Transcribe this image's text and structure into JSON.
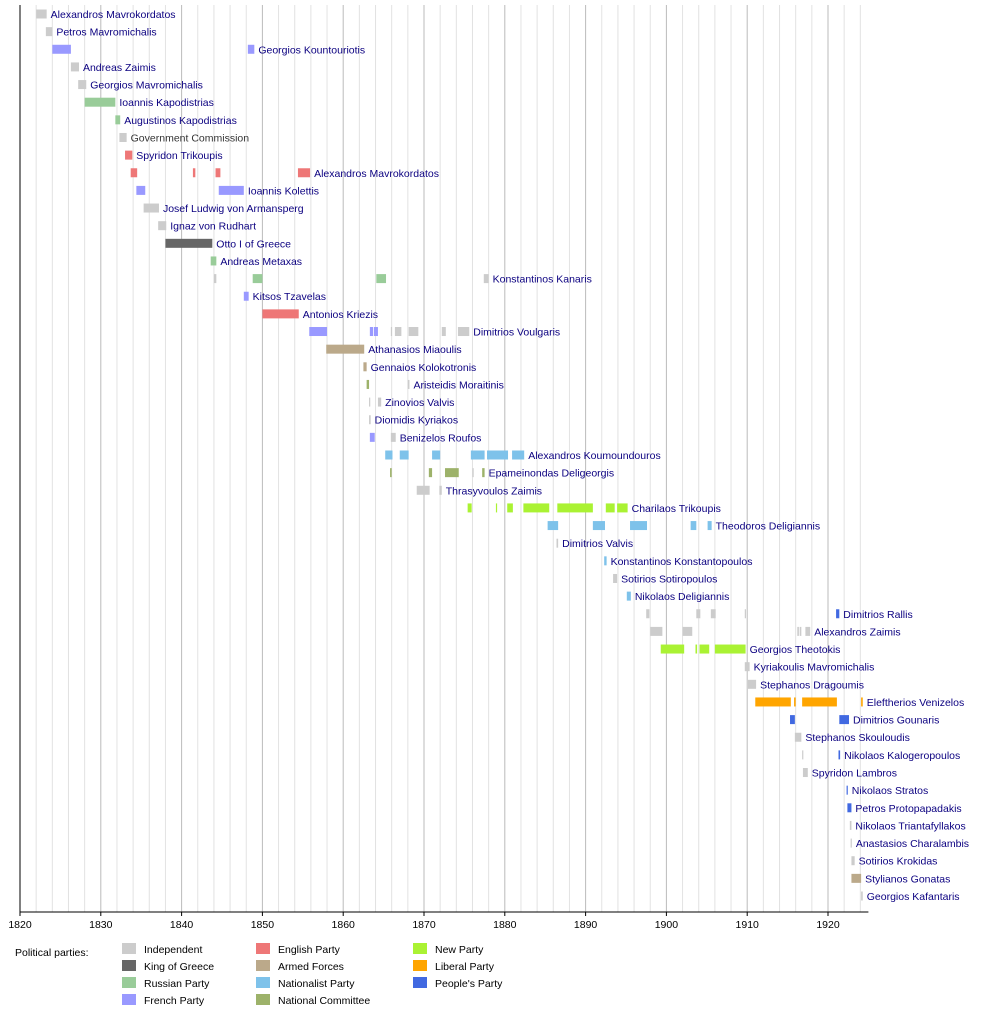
{
  "chart_data": {
    "type": "timeline",
    "xlim": [
      1820,
      1925
    ],
    "x_ticks": [
      "1820",
      "1830",
      "1840",
      "1850",
      "1860",
      "1870",
      "1880",
      "1890",
      "1900",
      "1910",
      "1920"
    ],
    "grid": true,
    "legend_title": "Political parties:",
    "legend_placement": "bottom-left",
    "parties": [
      {
        "key": "ind",
        "name": "Independent",
        "color": "#cccccc"
      },
      {
        "key": "king",
        "name": "King of Greece",
        "color": "#666666"
      },
      {
        "key": "rus",
        "name": "Russian Party",
        "color": "#99cc99"
      },
      {
        "key": "fr",
        "name": "French Party",
        "color": "#9999ff"
      },
      {
        "key": "eng",
        "name": "English Party",
        "color": "#ee7777"
      },
      {
        "key": "arm",
        "name": "Armed Forces",
        "color": "#bba98a"
      },
      {
        "key": "nat",
        "name": "Nationalist Party",
        "color": "#7ec2ea"
      },
      {
        "key": "nc",
        "name": "National Committee",
        "color": "#9db26a"
      },
      {
        "key": "new",
        "name": "New Party",
        "color": "#aaf233"
      },
      {
        "key": "lib",
        "name": "Liberal Party",
        "color": "#ffa500"
      },
      {
        "key": "peo",
        "name": "People's Party",
        "color": "#4169e1"
      }
    ],
    "rows": [
      {
        "name": "Alexandros Mavrokordatos",
        "segments": [
          [
            1822.0,
            1823.3,
            "ind"
          ]
        ]
      },
      {
        "name": "Petros Mavromichalis",
        "segments": [
          [
            1823.2,
            1824.0,
            "ind"
          ]
        ]
      },
      {
        "name": "Georgios Kountouriotis",
        "segments": [
          [
            1824.0,
            1826.3,
            "fr"
          ],
          [
            1848.2,
            1849.0,
            "fr"
          ]
        ]
      },
      {
        "name": "Andreas Zaimis",
        "segments": [
          [
            1826.3,
            1827.3,
            "ind"
          ]
        ]
      },
      {
        "name": "Georgios Mavromichalis",
        "segments": [
          [
            1827.2,
            1828.2,
            "ind"
          ]
        ]
      },
      {
        "name": "Ioannis Kapodistrias",
        "segments": [
          [
            1828.0,
            1831.8,
            "rus"
          ]
        ]
      },
      {
        "name": "Augustinos Kapodistrias",
        "segments": [
          [
            1831.8,
            1832.4,
            "rus"
          ]
        ]
      },
      {
        "name": "Government Commission",
        "plain": true,
        "segments": [
          [
            1832.3,
            1833.2,
            "ind"
          ]
        ]
      },
      {
        "name": "Spyridon Trikoupis",
        "segments": [
          [
            1833.0,
            1833.9,
            "eng"
          ]
        ]
      },
      {
        "name": "Alexandros Mavrokordatos",
        "segments": [
          [
            1833.7,
            1834.5,
            "eng"
          ],
          [
            1841.4,
            1841.7,
            "eng"
          ],
          [
            1844.2,
            1844.8,
            "eng"
          ],
          [
            1854.4,
            1855.9,
            "eng"
          ]
        ]
      },
      {
        "name": "Ioannis Kolettis",
        "segments": [
          [
            1834.4,
            1835.5,
            "fr"
          ],
          [
            1844.6,
            1847.7,
            "fr"
          ]
        ]
      },
      {
        "name": "Josef Ludwig von Armansperg",
        "segments": [
          [
            1835.3,
            1837.2,
            "ind"
          ]
        ]
      },
      {
        "name": "Ignaz von Rudhart",
        "segments": [
          [
            1837.1,
            1838.1,
            "ind"
          ]
        ]
      },
      {
        "name": "Otto I of Greece",
        "segments": [
          [
            1838.0,
            1843.8,
            "king"
          ]
        ]
      },
      {
        "name": "Andreas Metaxas",
        "segments": [
          [
            1843.6,
            1844.3,
            "rus"
          ]
        ]
      },
      {
        "name": "Konstantinos Kanaris",
        "segments": [
          [
            1844.0,
            1844.3,
            "ind"
          ],
          [
            1848.8,
            1850.0,
            "rus"
          ],
          [
            1864.1,
            1865.3,
            "rus"
          ],
          [
            1877.4,
            1878.0,
            "ind"
          ]
        ]
      },
      {
        "name": "Kitsos Tzavelas",
        "segments": [
          [
            1847.7,
            1848.3,
            "fr"
          ]
        ]
      },
      {
        "name": "Antonios Kriezis",
        "segments": [
          [
            1850.0,
            1854.5,
            "eng"
          ]
        ]
      },
      {
        "name": "Dimitrios Voulgaris",
        "segments": [
          [
            1855.8,
            1858.0,
            "fr"
          ],
          [
            1863.3,
            1863.7,
            "fr"
          ],
          [
            1863.8,
            1864.3,
            "fr"
          ],
          [
            1865.9,
            1866.0,
            "ind"
          ],
          [
            1866.4,
            1867.2,
            "ind"
          ],
          [
            1868.1,
            1869.3,
            "ind"
          ],
          [
            1872.2,
            1872.7,
            "ind"
          ],
          [
            1874.2,
            1875.6,
            "ind"
          ]
        ]
      },
      {
        "name": "Athanasios Miaoulis",
        "segments": [
          [
            1857.9,
            1862.6,
            "arm"
          ]
        ]
      },
      {
        "name": "Gennaios Kolokotronis",
        "segments": [
          [
            1862.5,
            1862.9,
            "arm"
          ]
        ]
      },
      {
        "name": "Aristeidis Moraitinis",
        "segments": [
          [
            1862.9,
            1863.2,
            "nc"
          ],
          [
            1868.0,
            1868.2,
            "ind"
          ]
        ]
      },
      {
        "name": "Zinovios Valvis",
        "segments": [
          [
            1863.2,
            1863.3,
            "ind"
          ],
          [
            1864.3,
            1864.7,
            "ind"
          ]
        ]
      },
      {
        "name": "Diomidis Kyriakos",
        "segments": [
          [
            1863.2,
            1863.4,
            "ind"
          ]
        ]
      },
      {
        "name": "Benizelos Roufos",
        "segments": [
          [
            1863.3,
            1863.9,
            "fr"
          ],
          [
            1865.9,
            1866.5,
            "ind"
          ]
        ]
      },
      {
        "name": "Alexandros Koumoundouros",
        "segments": [
          [
            1865.2,
            1866.1,
            "nat"
          ],
          [
            1867.0,
            1868.1,
            "nat"
          ],
          [
            1871.0,
            1872.0,
            "nat"
          ],
          [
            1875.8,
            1877.5,
            "nat"
          ],
          [
            1877.8,
            1880.4,
            "nat"
          ],
          [
            1880.9,
            1882.4,
            "nat"
          ]
        ]
      },
      {
        "name": "Epameinondas Deligeorgis",
        "segments": [
          [
            1865.8,
            1866.0,
            "nc"
          ],
          [
            1870.6,
            1871.0,
            "nc"
          ],
          [
            1872.6,
            1874.3,
            "nc"
          ],
          [
            1876.0,
            1876.1,
            "ind"
          ],
          [
            1877.2,
            1877.5,
            "nc"
          ]
        ]
      },
      {
        "name": "Thrasyvoulos Zaimis",
        "segments": [
          [
            1869.1,
            1870.7,
            "ind"
          ],
          [
            1871.9,
            1872.2,
            "ind"
          ]
        ]
      },
      {
        "name": "Charilaos Trikoupis",
        "segments": [
          [
            1875.4,
            1875.9,
            "new"
          ],
          [
            1878.9,
            1879.0,
            "new"
          ],
          [
            1880.3,
            1881.0,
            "new"
          ],
          [
            1882.3,
            1885.5,
            "new"
          ],
          [
            1886.5,
            1890.9,
            "new"
          ],
          [
            1892.5,
            1893.6,
            "new"
          ],
          [
            1893.9,
            1895.2,
            "new"
          ]
        ]
      },
      {
        "name": "Theodoros Deligiannis",
        "segments": [
          [
            1885.3,
            1886.6,
            "nat"
          ],
          [
            1890.9,
            1892.4,
            "nat"
          ],
          [
            1895.5,
            1897.6,
            "nat"
          ],
          [
            1903.0,
            1903.7,
            "nat"
          ],
          [
            1905.1,
            1905.6,
            "nat"
          ]
        ]
      },
      {
        "name": "Dimitrios Valvis",
        "segments": [
          [
            1886.4,
            1886.6,
            "ind"
          ]
        ]
      },
      {
        "name": "Konstantinos Konstantopoulos",
        "segments": [
          [
            1892.3,
            1892.6,
            "nat"
          ]
        ]
      },
      {
        "name": "Sotirios Sotiropoulos",
        "segments": [
          [
            1893.4,
            1893.9,
            "ind"
          ]
        ]
      },
      {
        "name": "Nikolaos Deligiannis",
        "segments": [
          [
            1895.1,
            1895.6,
            "nat"
          ]
        ]
      },
      {
        "name": "Dimitrios Rallis",
        "segments": [
          [
            1897.5,
            1897.9,
            "ind"
          ],
          [
            1903.7,
            1904.2,
            "ind"
          ],
          [
            1905.5,
            1906.1,
            "ind"
          ],
          [
            1909.7,
            1909.8,
            "ind"
          ],
          [
            1921.0,
            1921.4,
            "peo"
          ]
        ]
      },
      {
        "name": "Alexandros Zaimis",
        "segments": [
          [
            1898.0,
            1899.5,
            "ind"
          ],
          [
            1902.0,
            1903.2,
            "ind"
          ],
          [
            1916.2,
            1916.4,
            "ind"
          ],
          [
            1916.5,
            1916.7,
            "ind"
          ],
          [
            1917.2,
            1917.8,
            "ind"
          ]
        ]
      },
      {
        "name": "Georgios Theotokis",
        "segments": [
          [
            1899.3,
            1902.2,
            "new"
          ],
          [
            1903.6,
            1903.8,
            "new"
          ],
          [
            1904.1,
            1905.3,
            "new"
          ],
          [
            1906.0,
            1909.8,
            "new"
          ]
        ]
      },
      {
        "name": "Kyriakoulis Mavromichalis",
        "segments": [
          [
            1909.7,
            1910.3,
            "ind"
          ]
        ]
      },
      {
        "name": "Stephanos Dragoumis",
        "segments": [
          [
            1910.1,
            1911.1,
            "ind"
          ]
        ]
      },
      {
        "name": "Eleftherios Venizelos",
        "segments": [
          [
            1911.0,
            1915.4,
            "lib"
          ],
          [
            1915.8,
            1916.0,
            "lib"
          ],
          [
            1916.8,
            1921.1,
            "lib"
          ],
          [
            1924.1,
            1924.3,
            "lib"
          ]
        ]
      },
      {
        "name": "Dimitrios Gounaris",
        "segments": [
          [
            1915.3,
            1915.9,
            "peo"
          ],
          [
            1921.4,
            1922.6,
            "peo"
          ]
        ]
      },
      {
        "name": "Stephanos Skouloudis",
        "segments": [
          [
            1915.9,
            1916.7,
            "ind"
          ]
        ]
      },
      {
        "name": "Nikolaos Kalogeropoulos",
        "segments": [
          [
            1916.8,
            1916.9,
            "ind"
          ],
          [
            1921.3,
            1921.5,
            "peo"
          ]
        ]
      },
      {
        "name": "Spyridon Lambros",
        "segments": [
          [
            1916.9,
            1917.5,
            "ind"
          ]
        ]
      },
      {
        "name": "Nikolaos Stratos",
        "segments": [
          [
            1922.3,
            1922.4,
            "peo"
          ]
        ]
      },
      {
        "name": "Petros Protopapadakis",
        "segments": [
          [
            1922.4,
            1922.9,
            "peo"
          ]
        ]
      },
      {
        "name": "Nikolaos Triantafyllakos",
        "segments": [
          [
            1922.7,
            1922.9,
            "ind"
          ]
        ]
      },
      {
        "name": "Anastasios Charalambis",
        "segments": [
          [
            1922.8,
            1922.9,
            "ind"
          ]
        ]
      },
      {
        "name": "Sotirios Krokidas",
        "segments": [
          [
            1922.9,
            1923.3,
            "ind"
          ]
        ]
      },
      {
        "name": "Stylianos Gonatas",
        "segments": [
          [
            1922.9,
            1924.1,
            "arm"
          ]
        ]
      },
      {
        "name": "Georgios Kafantaris",
        "segments": [
          [
            1924.1,
            1924.3,
            "ind"
          ]
        ]
      }
    ]
  }
}
